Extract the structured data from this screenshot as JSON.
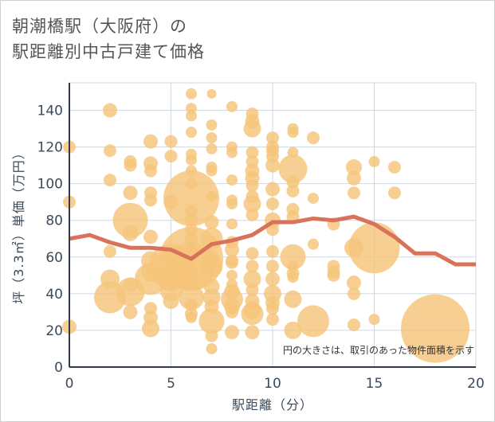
{
  "chart_data": {
    "type": "scatter",
    "title_lines": [
      "朝潮橋駅（大阪府）の",
      "駅距離別中古戸建て価格"
    ],
    "xlabel": "駅距離（分）",
    "ylabel": "坪（3.3㎡）単価（万円）",
    "xlim": [
      0,
      20
    ],
    "ylim": [
      0,
      155
    ],
    "x_ticks": [
      "0",
      "5",
      "10",
      "15",
      "20"
    ],
    "y_ticks": [
      "0",
      "20",
      "40",
      "60",
      "80",
      "100",
      "120",
      "140"
    ],
    "note": "円の大きさは、取引のあった物件面積を示す",
    "grid": true,
    "colors": {
      "bubble": "#f5c57a",
      "line": "#d9725a",
      "grid": "#cfd8e3",
      "text": "#3b4a5a"
    },
    "bubbles": [
      {
        "x": 0,
        "y": 120,
        "s": 8
      },
      {
        "x": 0,
        "y": 90,
        "s": 8
      },
      {
        "x": 0,
        "y": 22,
        "s": 9
      },
      {
        "x": 2,
        "y": 140,
        "s": 9
      },
      {
        "x": 2,
        "y": 118,
        "s": 8
      },
      {
        "x": 2,
        "y": 102,
        "s": 8
      },
      {
        "x": 2,
        "y": 63,
        "s": 8
      },
      {
        "x": 2,
        "y": 48,
        "s": 12
      },
      {
        "x": 2,
        "y": 38,
        "s": 20
      },
      {
        "x": 3,
        "y": 112,
        "s": 8
      },
      {
        "x": 3,
        "y": 110,
        "s": 8
      },
      {
        "x": 3,
        "y": 95,
        "s": 9
      },
      {
        "x": 3,
        "y": 80,
        "s": 22
      },
      {
        "x": 3,
        "y": 73,
        "s": 10
      },
      {
        "x": 3,
        "y": 45,
        "s": 9
      },
      {
        "x": 3,
        "y": 41,
        "s": 18
      },
      {
        "x": 3,
        "y": 30,
        "s": 9
      },
      {
        "x": 4,
        "y": 123,
        "s": 9
      },
      {
        "x": 4,
        "y": 111,
        "s": 9
      },
      {
        "x": 4,
        "y": 107,
        "s": 8
      },
      {
        "x": 4,
        "y": 95,
        "s": 8
      },
      {
        "x": 4,
        "y": 91,
        "s": 8
      },
      {
        "x": 4,
        "y": 71,
        "s": 9
      },
      {
        "x": 4,
        "y": 58,
        "s": 12
      },
      {
        "x": 4,
        "y": 52,
        "s": 12
      },
      {
        "x": 4,
        "y": 48,
        "s": 20
      },
      {
        "x": 4,
        "y": 32,
        "s": 8
      },
      {
        "x": 4,
        "y": 27,
        "s": 9
      },
      {
        "x": 4,
        "y": 21,
        "s": 11
      },
      {
        "x": 5,
        "y": 123,
        "s": 8
      },
      {
        "x": 5,
        "y": 115,
        "s": 8
      },
      {
        "x": 5,
        "y": 90,
        "s": 9
      },
      {
        "x": 5,
        "y": 60,
        "s": 12
      },
      {
        "x": 5,
        "y": 55,
        "s": 28
      },
      {
        "x": 5,
        "y": 48,
        "s": 16
      },
      {
        "x": 5,
        "y": 42,
        "s": 14
      },
      {
        "x": 5,
        "y": 36,
        "s": 10
      },
      {
        "x": 6,
        "y": 149,
        "s": 7
      },
      {
        "x": 6,
        "y": 141,
        "s": 7
      },
      {
        "x": 6,
        "y": 137,
        "s": 7
      },
      {
        "x": 6,
        "y": 128,
        "s": 7
      },
      {
        "x": 6,
        "y": 116,
        "s": 7
      },
      {
        "x": 6,
        "y": 113,
        "s": 7
      },
      {
        "x": 6,
        "y": 107,
        "s": 7
      },
      {
        "x": 6,
        "y": 100,
        "s": 7
      },
      {
        "x": 6,
        "y": 92,
        "s": 35
      },
      {
        "x": 6,
        "y": 85,
        "s": 8
      },
      {
        "x": 6,
        "y": 80,
        "s": 8
      },
      {
        "x": 6,
        "y": 75,
        "s": 8
      },
      {
        "x": 6,
        "y": 70,
        "s": 8
      },
      {
        "x": 6,
        "y": 64,
        "s": 8
      },
      {
        "x": 6,
        "y": 59,
        "s": 40
      },
      {
        "x": 6,
        "y": 55,
        "s": 30
      },
      {
        "x": 6,
        "y": 50,
        "s": 8
      },
      {
        "x": 6,
        "y": 46,
        "s": 8
      },
      {
        "x": 6,
        "y": 38,
        "s": 16
      },
      {
        "x": 6,
        "y": 34,
        "s": 8
      },
      {
        "x": 6,
        "y": 29,
        "s": 8
      },
      {
        "x": 6,
        "y": 27,
        "s": 7
      },
      {
        "x": 7,
        "y": 149,
        "s": 6
      },
      {
        "x": 7,
        "y": 132,
        "s": 7
      },
      {
        "x": 7,
        "y": 125,
        "s": 7
      },
      {
        "x": 7,
        "y": 119,
        "s": 7
      },
      {
        "x": 7,
        "y": 109,
        "s": 7
      },
      {
        "x": 7,
        "y": 107,
        "s": 7
      },
      {
        "x": 7,
        "y": 93,
        "s": 7
      },
      {
        "x": 7,
        "y": 79,
        "s": 9
      },
      {
        "x": 7,
        "y": 70,
        "s": 14
      },
      {
        "x": 7,
        "y": 60,
        "s": 9
      },
      {
        "x": 7,
        "y": 55,
        "s": 14
      },
      {
        "x": 7,
        "y": 44,
        "s": 10
      },
      {
        "x": 7,
        "y": 38,
        "s": 11
      },
      {
        "x": 7,
        "y": 33,
        "s": 9
      },
      {
        "x": 7,
        "y": 25,
        "s": 16
      },
      {
        "x": 7,
        "y": 17,
        "s": 8
      },
      {
        "x": 7,
        "y": 10,
        "s": 7
      },
      {
        "x": 8,
        "y": 142,
        "s": 7
      },
      {
        "x": 8,
        "y": 120,
        "s": 7
      },
      {
        "x": 8,
        "y": 117,
        "s": 7
      },
      {
        "x": 8,
        "y": 102,
        "s": 7
      },
      {
        "x": 8,
        "y": 91,
        "s": 7
      },
      {
        "x": 8,
        "y": 89,
        "s": 7
      },
      {
        "x": 8,
        "y": 78,
        "s": 7
      },
      {
        "x": 8,
        "y": 68,
        "s": 8
      },
      {
        "x": 8,
        "y": 64,
        "s": 9
      },
      {
        "x": 8,
        "y": 58,
        "s": 8
      },
      {
        "x": 8,
        "y": 57,
        "s": 8
      },
      {
        "x": 8,
        "y": 50,
        "s": 7
      },
      {
        "x": 8,
        "y": 45,
        "s": 7
      },
      {
        "x": 8,
        "y": 41,
        "s": 10
      },
      {
        "x": 8,
        "y": 37,
        "s": 14
      },
      {
        "x": 8,
        "y": 33,
        "s": 10
      },
      {
        "x": 8,
        "y": 30,
        "s": 8
      },
      {
        "x": 8,
        "y": 19,
        "s": 9
      },
      {
        "x": 9,
        "y": 138,
        "s": 8
      },
      {
        "x": 9,
        "y": 134,
        "s": 9
      },
      {
        "x": 9,
        "y": 130,
        "s": 11
      },
      {
        "x": 9,
        "y": 117,
        "s": 8
      },
      {
        "x": 9,
        "y": 112,
        "s": 8
      },
      {
        "x": 9,
        "y": 107,
        "s": 9
      },
      {
        "x": 9,
        "y": 103,
        "s": 9
      },
      {
        "x": 9,
        "y": 99,
        "s": 8
      },
      {
        "x": 9,
        "y": 93,
        "s": 8
      },
      {
        "x": 9,
        "y": 89,
        "s": 11
      },
      {
        "x": 9,
        "y": 83,
        "s": 8
      },
      {
        "x": 9,
        "y": 62,
        "s": 8
      },
      {
        "x": 9,
        "y": 55,
        "s": 8
      },
      {
        "x": 9,
        "y": 48,
        "s": 11
      },
      {
        "x": 9,
        "y": 42,
        "s": 8
      },
      {
        "x": 9,
        "y": 36,
        "s": 9
      },
      {
        "x": 9,
        "y": 31,
        "s": 11
      },
      {
        "x": 9,
        "y": 29,
        "s": 14
      },
      {
        "x": 9,
        "y": 19,
        "s": 9
      },
      {
        "x": 10,
        "y": 125,
        "s": 8
      },
      {
        "x": 10,
        "y": 120,
        "s": 8
      },
      {
        "x": 10,
        "y": 118,
        "s": 8
      },
      {
        "x": 10,
        "y": 115,
        "s": 8
      },
      {
        "x": 10,
        "y": 110,
        "s": 9
      },
      {
        "x": 10,
        "y": 97,
        "s": 9
      },
      {
        "x": 10,
        "y": 89,
        "s": 8
      },
      {
        "x": 10,
        "y": 80,
        "s": 10
      },
      {
        "x": 10,
        "y": 75,
        "s": 8
      },
      {
        "x": 10,
        "y": 63,
        "s": 8
      },
      {
        "x": 10,
        "y": 55,
        "s": 8
      },
      {
        "x": 10,
        "y": 48,
        "s": 9
      },
      {
        "x": 10,
        "y": 40,
        "s": 11
      },
      {
        "x": 10,
        "y": 35,
        "s": 9
      },
      {
        "x": 10,
        "y": 32,
        "s": 8
      },
      {
        "x": 10,
        "y": 26,
        "s": 8
      },
      {
        "x": 11,
        "y": 130,
        "s": 7
      },
      {
        "x": 11,
        "y": 128,
        "s": 7
      },
      {
        "x": 11,
        "y": 117,
        "s": 7
      },
      {
        "x": 11,
        "y": 108,
        "s": 18
      },
      {
        "x": 11,
        "y": 101,
        "s": 8
      },
      {
        "x": 11,
        "y": 96,
        "s": 8
      },
      {
        "x": 11,
        "y": 86,
        "s": 8
      },
      {
        "x": 11,
        "y": 82,
        "s": 8
      },
      {
        "x": 11,
        "y": 60,
        "s": 16
      },
      {
        "x": 11,
        "y": 55,
        "s": 7
      },
      {
        "x": 11,
        "y": 51,
        "s": 8
      },
      {
        "x": 11,
        "y": 49,
        "s": 7
      },
      {
        "x": 11,
        "y": 37,
        "s": 11
      },
      {
        "x": 11,
        "y": 20,
        "s": 11
      },
      {
        "x": 12,
        "y": 125,
        "s": 8
      },
      {
        "x": 12,
        "y": 92,
        "s": 7
      },
      {
        "x": 12,
        "y": 67,
        "s": 7
      },
      {
        "x": 12,
        "y": 25,
        "s": 20
      },
      {
        "x": 13,
        "y": 78,
        "s": 8
      },
      {
        "x": 13,
        "y": 55,
        "s": 8
      },
      {
        "x": 13,
        "y": 52,
        "s": 8
      },
      {
        "x": 13,
        "y": 50,
        "s": 8
      },
      {
        "x": 14,
        "y": 109,
        "s": 10
      },
      {
        "x": 14,
        "y": 103,
        "s": 9
      },
      {
        "x": 14,
        "y": 95,
        "s": 8
      },
      {
        "x": 14,
        "y": 65,
        "s": 12
      },
      {
        "x": 14,
        "y": 46,
        "s": 9
      },
      {
        "x": 14,
        "y": 40,
        "s": 8
      },
      {
        "x": 14,
        "y": 23,
        "s": 8
      },
      {
        "x": 15,
        "y": 112,
        "s": 7
      },
      {
        "x": 15,
        "y": 65,
        "s": 32
      },
      {
        "x": 15,
        "y": 26,
        "s": 7
      },
      {
        "x": 16,
        "y": 109,
        "s": 8
      },
      {
        "x": 16,
        "y": 95,
        "s": 8
      },
      {
        "x": 18,
        "y": 21,
        "s": 43
      }
    ],
    "series": [
      {
        "x": [
          0,
          1,
          2,
          3,
          4,
          5,
          6,
          7,
          8,
          9,
          10,
          11,
          12,
          13,
          14,
          15,
          16,
          17,
          18,
          19,
          20
        ],
        "y": [
          70,
          72,
          68,
          65,
          65,
          64,
          59,
          67,
          69,
          72,
          79,
          79,
          81,
          80,
          82,
          78,
          71,
          62,
          62,
          56,
          56
        ]
      }
    ]
  }
}
